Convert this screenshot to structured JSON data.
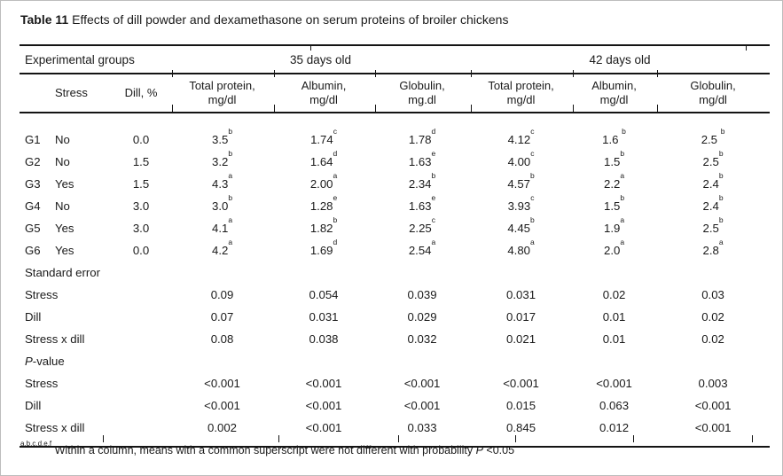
{
  "title": {
    "bold": "Table 11",
    "rest": " Effects of dill powder and dexamethasone on serum proteins of broiler chickens"
  },
  "table": {
    "group_headers": [
      {
        "label": "Experimental groups",
        "span": 3,
        "align": "left"
      },
      {
        "label": "35 days old",
        "span": 3,
        "align": "center"
      },
      {
        "label": "42 days old",
        "span": 3,
        "align": "center"
      }
    ],
    "column_headers": [
      "",
      "Stress",
      "Dill, %",
      "Total protein,\nmg/dl",
      "Albumin,\nmg/dl",
      "Globulin,\nmg.dl",
      "Total protein,\nmg/dl",
      "Albumin,\nmg/dl",
      "Globulin,\nmg/dl"
    ],
    "rows": [
      {
        "type": "group",
        "cells": [
          "G1",
          "No",
          "0.0",
          "3.5^b",
          "1.74^c",
          "1.78^d",
          "4.12^c",
          "1.6 ^b",
          "2.5 ^b"
        ]
      },
      {
        "type": "group",
        "cells": [
          "G2",
          "No",
          "1.5",
          "3.2^b",
          "1.64^d",
          "1.63^e",
          "4.00^c",
          "1.5^b",
          "2.5^b"
        ]
      },
      {
        "type": "group",
        "cells": [
          "G3",
          "Yes",
          "1.5",
          "4.3^a",
          "2.00^a",
          "2.34^b",
          "4.57^b",
          "2.2^a",
          "2.4^b"
        ]
      },
      {
        "type": "group",
        "cells": [
          "G4",
          "No",
          "3.0",
          "3.0^b",
          "1.28^e",
          "1.63^e",
          "3.93^c",
          "1.5^b",
          "2.4^b"
        ]
      },
      {
        "type": "group",
        "cells": [
          "G5",
          "Yes",
          "3.0",
          "4.1^a",
          "1.82^b",
          "2.25^c",
          "4.45^b",
          "1.9^a",
          "2.5^b"
        ]
      },
      {
        "type": "group",
        "cells": [
          "G6",
          "Yes",
          "0.0",
          "4.2^a",
          "1.69^d",
          "2.54^a",
          "4.80^a",
          "2.0^a",
          "2.8^a"
        ]
      },
      {
        "type": "section",
        "parts": [
          {
            "text": "Standard error",
            "italic": false
          }
        ]
      },
      {
        "type": "stat",
        "label": "Stress",
        "values": [
          "0.09",
          "0.054",
          "0.039",
          "0.031",
          "0.02",
          "0.03"
        ]
      },
      {
        "type": "stat",
        "label": "Dill",
        "values": [
          "0.07",
          "0.031",
          "0.029",
          "0.017",
          "0.01",
          "0.02"
        ]
      },
      {
        "type": "stat",
        "label": "Stress x dill",
        "values": [
          "0.08",
          "0.038",
          "0.032",
          "0.021",
          "0.01",
          "0.02"
        ]
      },
      {
        "type": "section",
        "parts": [
          {
            "text": "P",
            "italic": true
          },
          {
            "text": "-value",
            "italic": false
          }
        ]
      },
      {
        "type": "stat",
        "label": "Stress",
        "values": [
          "<0.001",
          "<0.001",
          "<0.001",
          "<0.001",
          "<0.001",
          "0.003"
        ]
      },
      {
        "type": "stat",
        "label": "Dill",
        "values": [
          "<0.001",
          "<0.001",
          "<0.001",
          "0.015",
          "0.063",
          "<0.001"
        ]
      },
      {
        "type": "stat",
        "label": "Stress x dill",
        "values": [
          "0.002",
          "<0.001",
          "0.033",
          "0.845",
          "0.012",
          "<0.001"
        ]
      }
    ]
  },
  "footnote": {
    "superscript": "a,b,c,d,e,f",
    "text_before_p": " Within a column, means with a common superscript were not different with probability ",
    "p": "P",
    "text_after_p": " <0.05"
  }
}
